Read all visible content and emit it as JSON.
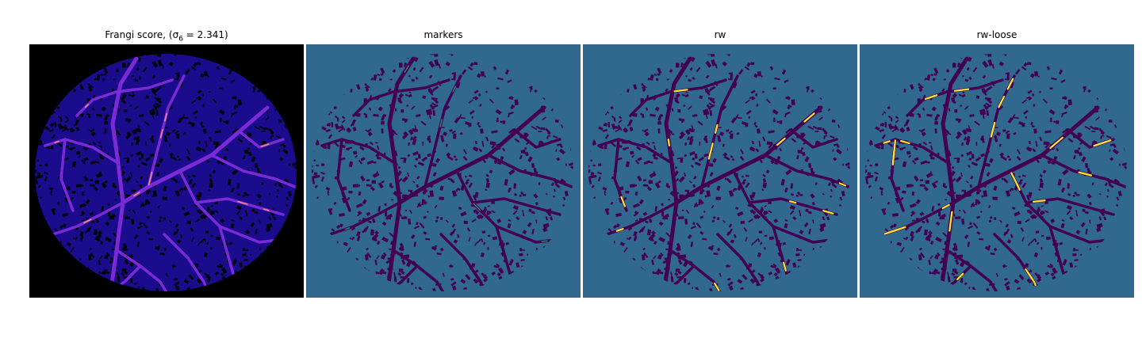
{
  "panels": [
    {
      "title_main": "Frangi score, ",
      "title_math": "(σ",
      "title_sub": "6",
      "title_tail": " = 2.341)",
      "background": "#000000",
      "disk": "#1a0c8c",
      "texture": "#05030f",
      "vessel": "#7a2ad6",
      "highlight": "#f08a7a"
    },
    {
      "title_main": "markers",
      "background": "#31688e",
      "disk": "#31688e",
      "texture": "#440154",
      "vessel": "#440154",
      "highlight": "#35b779"
    },
    {
      "title_main": "rw",
      "background": "#31688e",
      "disk": "#31688e",
      "texture": "#440154",
      "vessel": "#440154",
      "highlight": "#fde725"
    },
    {
      "title_main": "rw-loose",
      "background": "#31688e",
      "disk": "#31688e",
      "texture": "#440154",
      "vessel": "#440154",
      "highlight": "#fde725"
    }
  ]
}
